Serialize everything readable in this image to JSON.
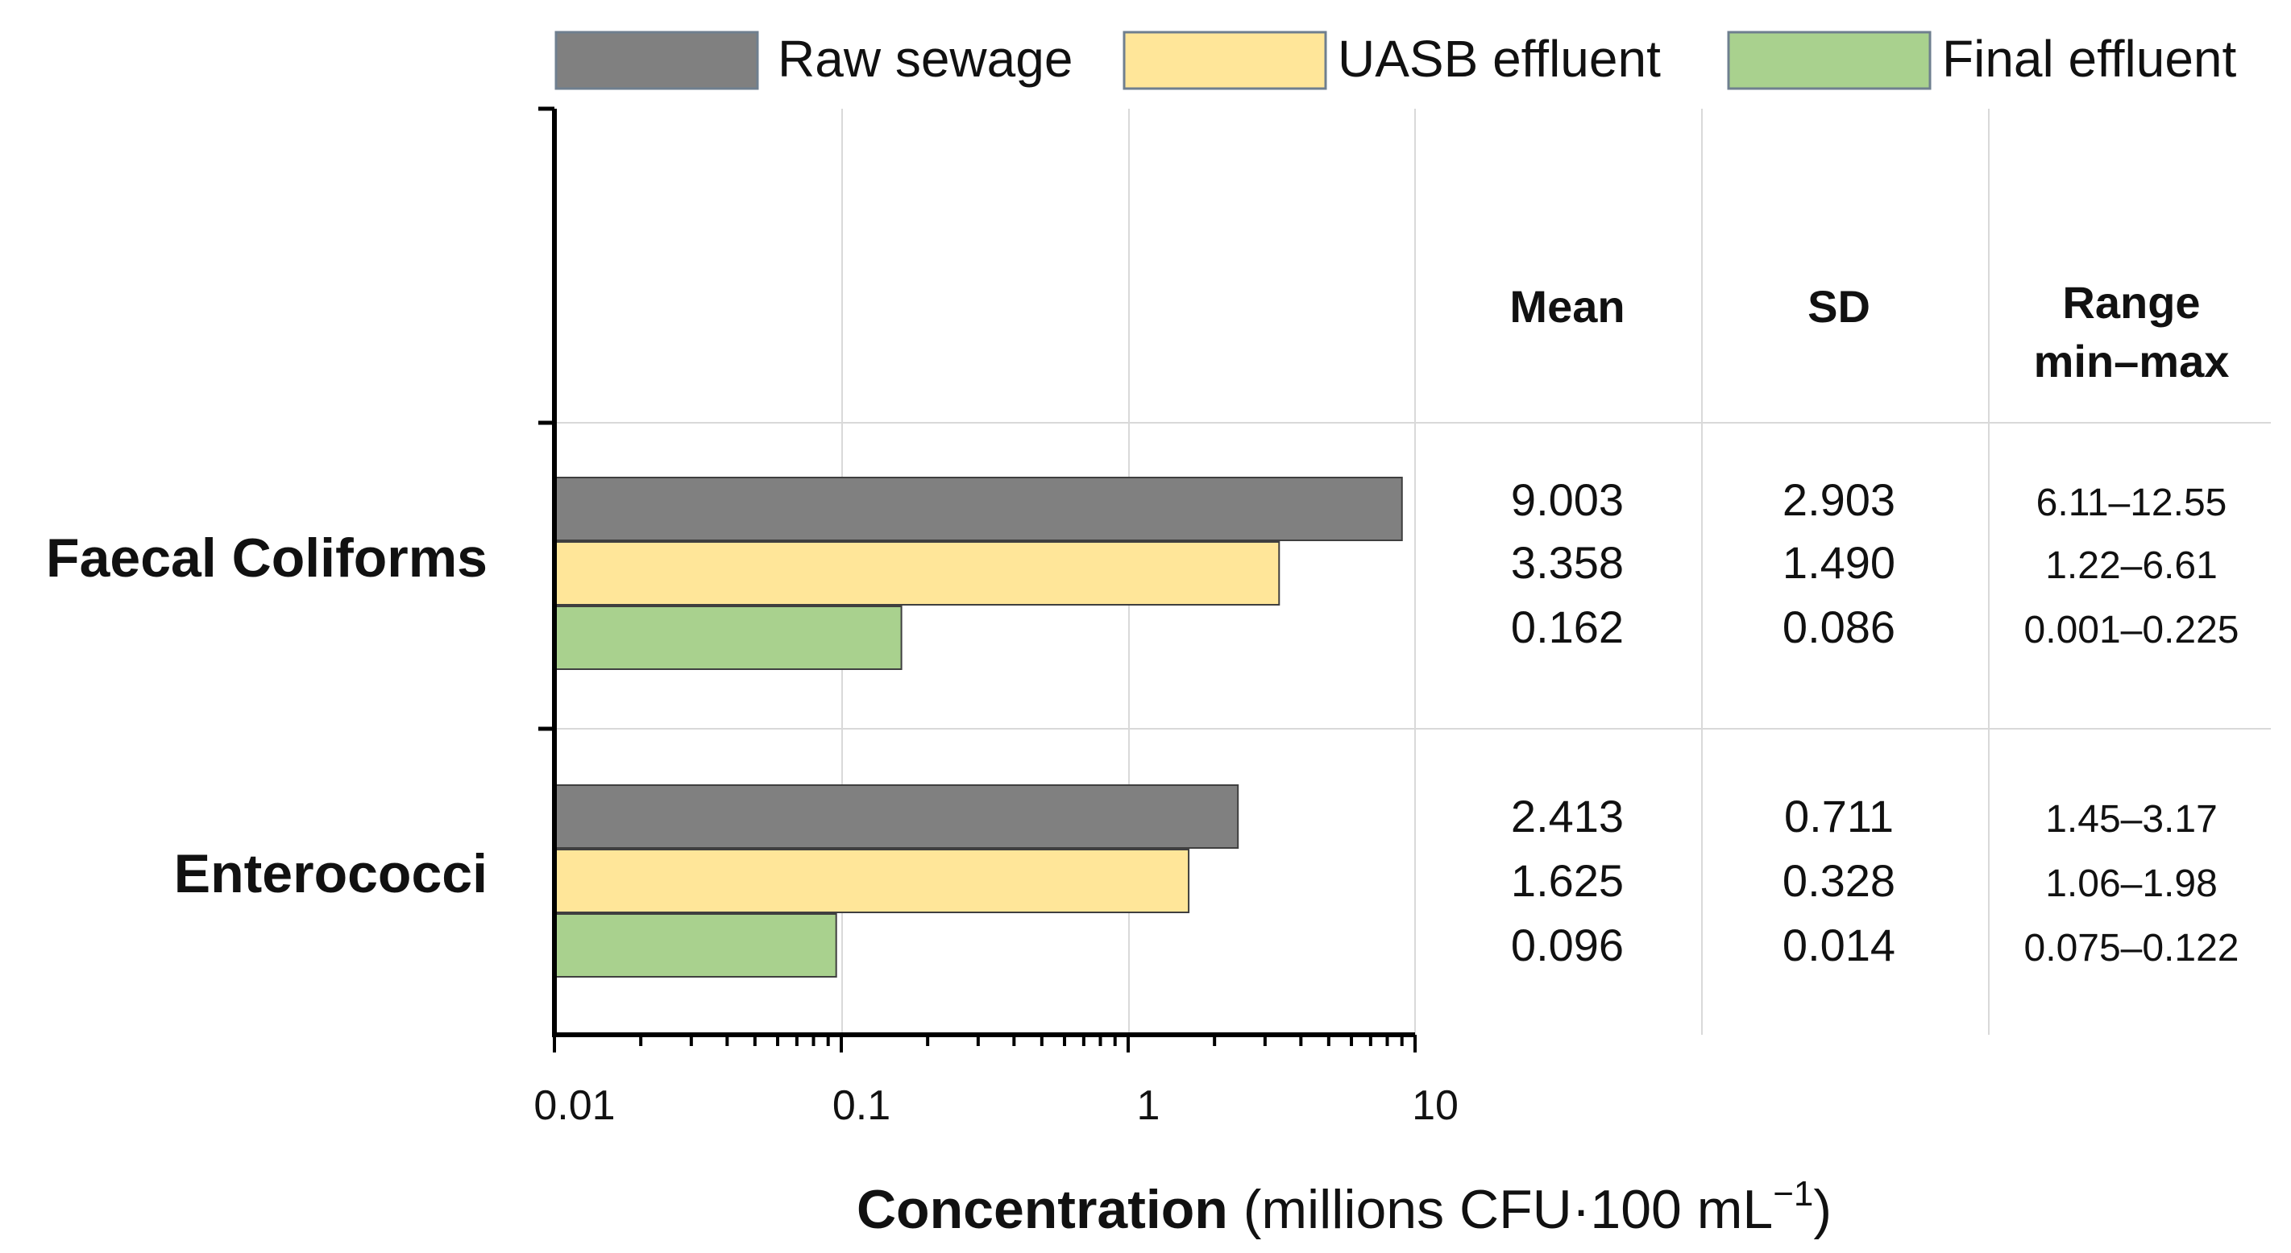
{
  "chart_data": {
    "type": "bar",
    "orientation": "horizontal",
    "x_scale": "log",
    "xlim": [
      0.01,
      10
    ],
    "x_ticks": [
      "0.01",
      "0.1",
      "1",
      "10"
    ],
    "xlabel_bold": "Concentration",
    "xlabel_rest": " (millions CFU·100 mL",
    "xlabel_sup": "−1",
    "xlabel_close": ")",
    "legend_position": "top",
    "categories": [
      "Faecal Coliforms",
      "Enterococci"
    ],
    "series": [
      {
        "name": "Raw sewage",
        "color": "#808080",
        "values": [
          9.003,
          2.413
        ]
      },
      {
        "name": "UASB effluent",
        "color": "#ffe699",
        "values": [
          3.358,
          1.625
        ]
      },
      {
        "name": "Final effluent",
        "color": "#a9d18e",
        "values": [
          0.162,
          0.096
        ]
      }
    ],
    "table": {
      "headers": [
        "Mean",
        "SD",
        "Range"
      ],
      "header_sub": "min–max",
      "rows": [
        [
          [
            "9.003",
            "2.903",
            "6.11–12.55"
          ],
          [
            "3.358",
            "1.490",
            "1.22–6.61"
          ],
          [
            "0.162",
            "0.086",
            "0.001–0.225"
          ]
        ],
        [
          [
            "2.413",
            "0.711",
            "1.45–3.17"
          ],
          [
            "1.625",
            "0.328",
            "1.06–1.98"
          ],
          [
            "0.096",
            "0.014",
            "0.075–0.122"
          ]
        ]
      ]
    }
  }
}
